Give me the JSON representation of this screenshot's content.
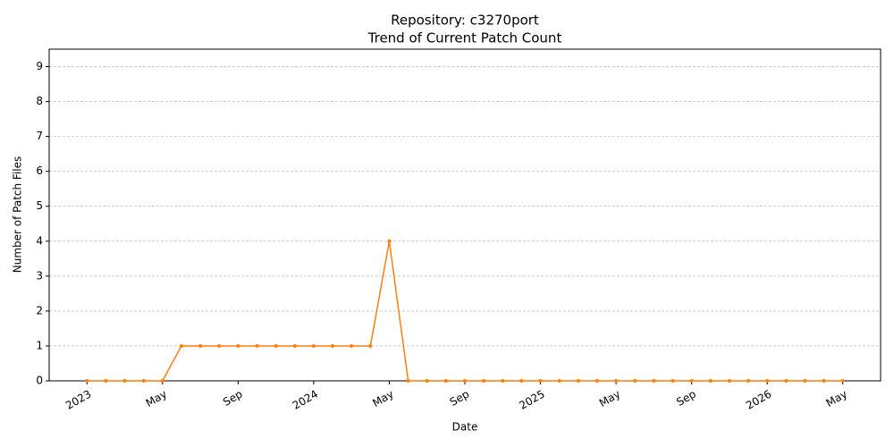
{
  "chart_data": {
    "type": "line",
    "title": "Repository: c3270port",
    "subtitle": "Trend of Current Patch Count",
    "x_label": "Date",
    "y_label": "Number of Patch Files",
    "x": [
      "2023-01",
      "2023-02",
      "2023-03",
      "2023-04",
      "2023-05",
      "2023-06",
      "2023-07",
      "2023-08",
      "2023-09",
      "2023-10",
      "2023-11",
      "2023-12",
      "2024-01",
      "2024-02",
      "2024-03",
      "2024-04",
      "2024-05",
      "2024-06",
      "2024-07",
      "2024-08",
      "2024-09",
      "2024-10",
      "2024-11",
      "2024-12",
      "2025-01",
      "2025-02",
      "2025-03",
      "2025-04",
      "2025-05",
      "2025-06",
      "2025-07",
      "2025-08",
      "2025-09",
      "2025-10",
      "2025-11",
      "2025-12",
      "2026-01",
      "2026-02",
      "2026-03",
      "2026-04",
      "2026-05"
    ],
    "values": [
      0,
      0,
      0,
      0,
      0,
      1,
      1,
      1,
      1,
      1,
      1,
      1,
      1,
      1,
      1,
      1,
      4,
      0,
      0,
      0,
      0,
      0,
      0,
      0,
      0,
      0,
      0,
      0,
      0,
      0,
      0,
      0,
      0,
      0,
      0,
      0,
      0,
      0,
      0,
      0,
      0
    ],
    "color": "#ff7f0e",
    "xlim": [
      "2022-11",
      "2026-07"
    ],
    "xticks": [
      {
        "value": "2023-01",
        "label": "2023"
      },
      {
        "value": "2023-05",
        "label": "May"
      },
      {
        "value": "2023-09",
        "label": "Sep"
      },
      {
        "value": "2024-01",
        "label": "2024"
      },
      {
        "value": "2024-05",
        "label": "May"
      },
      {
        "value": "2024-09",
        "label": "Sep"
      },
      {
        "value": "2025-01",
        "label": "2025"
      },
      {
        "value": "2025-05",
        "label": "May"
      },
      {
        "value": "2025-09",
        "label": "Sep"
      },
      {
        "value": "2026-01",
        "label": "2026"
      },
      {
        "value": "2026-05",
        "label": "May"
      }
    ],
    "ylim": [
      0,
      9.5
    ],
    "yticks": [
      0,
      1,
      2,
      3,
      4,
      5,
      6,
      7,
      8,
      9
    ],
    "grid": true
  }
}
